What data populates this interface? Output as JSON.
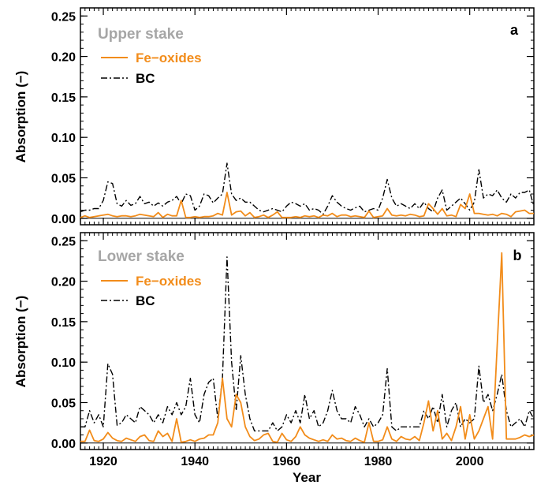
{
  "colors": {
    "fe": "#f28c1a",
    "bc": "#000000",
    "stake": "#a6a6a6",
    "axis": "#000000"
  },
  "chart_data": [
    {
      "type": "line",
      "panel_letter": "a",
      "stake_label": "Upper stake",
      "title": "",
      "xlabel": "Year",
      "ylabel": "Absorption (−)",
      "xlim": [
        1915,
        2014
      ],
      "ylim": [
        -0.008,
        0.26
      ],
      "xticks": [
        "1920",
        "1940",
        "1960",
        "1980",
        "2000"
      ],
      "yticks": [
        "0.00",
        "0.05",
        "0.10",
        "0.15",
        "0.20",
        "0.25"
      ],
      "legend_position": "top-left",
      "series": [
        {
          "name": "Fe−oxides",
          "style": "solid",
          "x": [
            1915,
            1916,
            1917,
            1918,
            1919,
            1920,
            1921,
            1922,
            1923,
            1924,
            1925,
            1926,
            1927,
            1928,
            1929,
            1930,
            1931,
            1932,
            1933,
            1934,
            1935,
            1936,
            1937,
            1938,
            1939,
            1940,
            1941,
            1942,
            1943,
            1944,
            1945,
            1946,
            1947,
            1948,
            1949,
            1950,
            1951,
            1952,
            1953,
            1954,
            1955,
            1956,
            1957,
            1958,
            1959,
            1960,
            1961,
            1962,
            1963,
            1964,
            1965,
            1966,
            1967,
            1968,
            1969,
            1970,
            1971,
            1972,
            1973,
            1974,
            1975,
            1976,
            1977,
            1978,
            1979,
            1980,
            1981,
            1982,
            1983,
            1984,
            1985,
            1986,
            1987,
            1988,
            1989,
            1990,
            1991,
            1992,
            1993,
            1994,
            1995,
            1996,
            1997,
            1998,
            1999,
            2000,
            2001,
            2002,
            2003,
            2004,
            2005,
            2006,
            2007,
            2008,
            2009,
            2010,
            2011,
            2012,
            2013,
            2014
          ],
          "values": [
            0.001,
            0.003,
            0.001,
            0.002,
            0.003,
            0.004,
            0.005,
            0.003,
            0.002,
            0.003,
            0.003,
            0.002,
            0.003,
            0.005,
            0.004,
            0.003,
            0.002,
            0.007,
            0.001,
            0.005,
            0.003,
            0.003,
            0.022,
            0.001,
            0.001,
            0.002,
            0.001,
            0.002,
            0.002,
            0.003,
            0.006,
            0.004,
            0.032,
            0.004,
            0.008,
            0.009,
            0.003,
            0.007,
            0.001,
            0.002,
            0.004,
            0.001,
            0.004,
            0.008,
            0.001,
            0.001,
            0.001,
            0.002,
            0.001,
            0.003,
            0.002,
            0.003,
            0.001,
            0.004,
            0.003,
            0.006,
            0.002,
            0.004,
            0.004,
            0.002,
            0.003,
            0.002,
            0.001,
            0.009,
            0.001,
            0.002,
            0.003,
            0.012,
            0.004,
            0.003,
            0.004,
            0.003,
            0.005,
            0.004,
            0.002,
            0.003,
            0.018,
            0.012,
            0.005,
            0.012,
            0.003,
            0.004,
            0.002,
            0.017,
            0.012,
            0.03,
            0.006,
            0.006,
            0.005,
            0.004,
            0.005,
            0.003,
            0.006,
            0.005,
            0.002,
            0.008,
            0.009,
            0.01,
            0.006,
            0.006
          ]
        },
        {
          "name": "BC",
          "style": "dashdot",
          "x": [
            1915,
            1916,
            1917,
            1918,
            1919,
            1920,
            1921,
            1922,
            1923,
            1924,
            1925,
            1926,
            1927,
            1928,
            1929,
            1930,
            1931,
            1932,
            1933,
            1934,
            1935,
            1936,
            1937,
            1938,
            1939,
            1940,
            1941,
            1942,
            1943,
            1944,
            1945,
            1946,
            1947,
            1948,
            1949,
            1950,
            1951,
            1952,
            1953,
            1954,
            1955,
            1956,
            1957,
            1958,
            1959,
            1960,
            1961,
            1962,
            1963,
            1964,
            1965,
            1966,
            1967,
            1968,
            1969,
            1970,
            1971,
            1972,
            1973,
            1974,
            1975,
            1976,
            1977,
            1978,
            1979,
            1980,
            1981,
            1982,
            1983,
            1984,
            1985,
            1986,
            1987,
            1988,
            1989,
            1990,
            1991,
            1992,
            1993,
            1994,
            1995,
            1996,
            1997,
            1998,
            1999,
            2000,
            2001,
            2002,
            2003,
            2004,
            2005,
            2006,
            2007,
            2008,
            2009,
            2010,
            2011,
            2012,
            2013,
            2014
          ],
          "values": [
            0.008,
            0.01,
            0.01,
            0.012,
            0.012,
            0.022,
            0.045,
            0.043,
            0.018,
            0.015,
            0.022,
            0.016,
            0.018,
            0.027,
            0.018,
            0.02,
            0.015,
            0.019,
            0.015,
            0.02,
            0.022,
            0.027,
            0.018,
            0.03,
            0.028,
            0.01,
            0.015,
            0.03,
            0.028,
            0.019,
            0.025,
            0.03,
            0.068,
            0.03,
            0.022,
            0.025,
            0.02,
            0.02,
            0.015,
            0.01,
            0.008,
            0.01,
            0.012,
            0.01,
            0.008,
            0.015,
            0.02,
            0.018,
            0.015,
            0.018,
            0.01,
            0.012,
            0.01,
            0.005,
            0.015,
            0.028,
            0.02,
            0.015,
            0.012,
            0.01,
            0.013,
            0.015,
            0.008,
            0.01,
            0.012,
            0.01,
            0.025,
            0.048,
            0.025,
            0.015,
            0.018,
            0.015,
            0.012,
            0.018,
            0.012,
            0.02,
            0.012,
            0.008,
            0.025,
            0.035,
            0.01,
            0.015,
            0.02,
            0.025,
            0.018,
            0.01,
            0.02,
            0.06,
            0.025,
            0.03,
            0.028,
            0.035,
            0.025,
            0.02,
            0.03,
            0.025,
            0.032,
            0.032,
            0.035,
            0.015
          ]
        }
      ]
    },
    {
      "type": "line",
      "panel_letter": "b",
      "stake_label": "Lower stake",
      "title": "",
      "xlabel": "Year",
      "ylabel": "Absorption (−)",
      "xlim": [
        1915,
        2014
      ],
      "ylim": [
        -0.008,
        0.26
      ],
      "xticks": [
        "1920",
        "1940",
        "1960",
        "1980",
        "2000"
      ],
      "yticks": [
        "0.00",
        "0.05",
        "0.10",
        "0.15",
        "0.20",
        "0.25"
      ],
      "legend_position": "top-left",
      "series": [
        {
          "name": "Fe−oxides",
          "style": "solid",
          "x": [
            1915,
            1916,
            1917,
            1918,
            1919,
            1920,
            1921,
            1922,
            1923,
            1924,
            1925,
            1926,
            1927,
            1928,
            1929,
            1930,
            1931,
            1932,
            1933,
            1934,
            1935,
            1936,
            1937,
            1938,
            1939,
            1940,
            1941,
            1942,
            1943,
            1944,
            1945,
            1946,
            1947,
            1948,
            1949,
            1950,
            1951,
            1952,
            1953,
            1954,
            1955,
            1956,
            1957,
            1958,
            1959,
            1960,
            1961,
            1962,
            1963,
            1964,
            1965,
            1966,
            1967,
            1968,
            1969,
            1970,
            1971,
            1972,
            1973,
            1974,
            1975,
            1976,
            1977,
            1978,
            1979,
            1980,
            1981,
            1982,
            1983,
            1984,
            1985,
            1986,
            1987,
            1988,
            1989,
            1990,
            1991,
            1992,
            1993,
            1994,
            1995,
            1996,
            1997,
            1998,
            1999,
            2000,
            2001,
            2002,
            2003,
            2004,
            2005,
            2006,
            2007,
            2008,
            2009,
            2010,
            2011,
            2012,
            2013,
            2014
          ],
          "values": [
            0.002,
            0.002,
            0.016,
            0.003,
            0.002,
            0.005,
            0.013,
            0.006,
            0.003,
            0.002,
            0.006,
            0.004,
            0.002,
            0.008,
            0.01,
            0.003,
            0.002,
            0.015,
            0.008,
            0.012,
            0.002,
            0.03,
            0.001,
            0.002,
            0.004,
            0.002,
            0.005,
            0.006,
            0.01,
            0.01,
            0.025,
            0.08,
            0.03,
            0.02,
            0.06,
            0.05,
            0.02,
            0.008,
            0.003,
            0.005,
            0.01,
            0.012,
            0.002,
            0.001,
            0.012,
            0.004,
            0.002,
            0.008,
            0.02,
            0.01,
            0.006,
            0.004,
            0.002,
            0.004,
            0.002,
            0.01,
            0.005,
            0.006,
            0.003,
            0.002,
            0.006,
            0.003,
            0.001,
            0.025,
            0.002,
            0.002,
            0.004,
            0.02,
            0.005,
            0.002,
            0.008,
            0.005,
            0.004,
            0.008,
            0.003,
            0.025,
            0.052,
            0.015,
            0.04,
            0.005,
            0.012,
            0.003,
            0.02,
            0.045,
            0.005,
            0.035,
            0.005,
            0.015,
            0.03,
            0.045,
            0.005,
            0.12,
            0.235,
            0.005,
            0.005,
            0.005,
            0.007,
            0.01,
            0.008,
            0.01
          ]
        },
        {
          "name": "BC",
          "style": "dashdot",
          "x": [
            1915,
            1916,
            1917,
            1918,
            1919,
            1920,
            1921,
            1922,
            1923,
            1924,
            1925,
            1926,
            1927,
            1928,
            1929,
            1930,
            1931,
            1932,
            1933,
            1934,
            1935,
            1936,
            1937,
            1938,
            1939,
            1940,
            1941,
            1942,
            1943,
            1944,
            1945,
            1946,
            1947,
            1948,
            1949,
            1950,
            1951,
            1952,
            1953,
            1954,
            1955,
            1956,
            1957,
            1958,
            1959,
            1960,
            1961,
            1962,
            1963,
            1964,
            1965,
            1966,
            1967,
            1968,
            1969,
            1970,
            1971,
            1972,
            1973,
            1974,
            1975,
            1976,
            1977,
            1978,
            1979,
            1980,
            1981,
            1982,
            1983,
            1984,
            1985,
            1986,
            1987,
            1988,
            1989,
            1990,
            1991,
            1992,
            1993,
            1994,
            1995,
            1996,
            1997,
            1998,
            1999,
            2000,
            2001,
            2002,
            2003,
            2004,
            2005,
            2006,
            2007,
            2008,
            2009,
            2010,
            2011,
            2012,
            2013,
            2014
          ],
          "values": [
            0.02,
            0.02,
            0.04,
            0.025,
            0.035,
            0.02,
            0.098,
            0.085,
            0.022,
            0.025,
            0.035,
            0.03,
            0.025,
            0.045,
            0.04,
            0.035,
            0.025,
            0.035,
            0.025,
            0.045,
            0.035,
            0.05,
            0.035,
            0.045,
            0.08,
            0.035,
            0.025,
            0.06,
            0.075,
            0.08,
            0.03,
            0.08,
            0.23,
            0.1,
            0.04,
            0.108,
            0.06,
            0.03,
            0.015,
            0.015,
            0.015,
            0.015,
            0.025,
            0.015,
            0.02,
            0.035,
            0.025,
            0.04,
            0.025,
            0.06,
            0.03,
            0.04,
            0.02,
            0.025,
            0.04,
            0.065,
            0.04,
            0.03,
            0.03,
            0.025,
            0.045,
            0.035,
            0.02,
            0.03,
            0.02,
            0.025,
            0.035,
            0.092,
            0.02,
            0.015,
            0.02,
            0.02,
            0.02,
            0.02,
            0.02,
            0.04,
            0.03,
            0.045,
            0.025,
            0.06,
            0.02,
            0.04,
            0.05,
            0.02,
            0.03,
            0.025,
            0.03,
            0.095,
            0.05,
            0.06,
            0.04,
            0.06,
            0.085,
            0.04,
            0.02,
            0.025,
            0.03,
            0.02,
            0.04,
            0.03
          ]
        }
      ]
    }
  ]
}
